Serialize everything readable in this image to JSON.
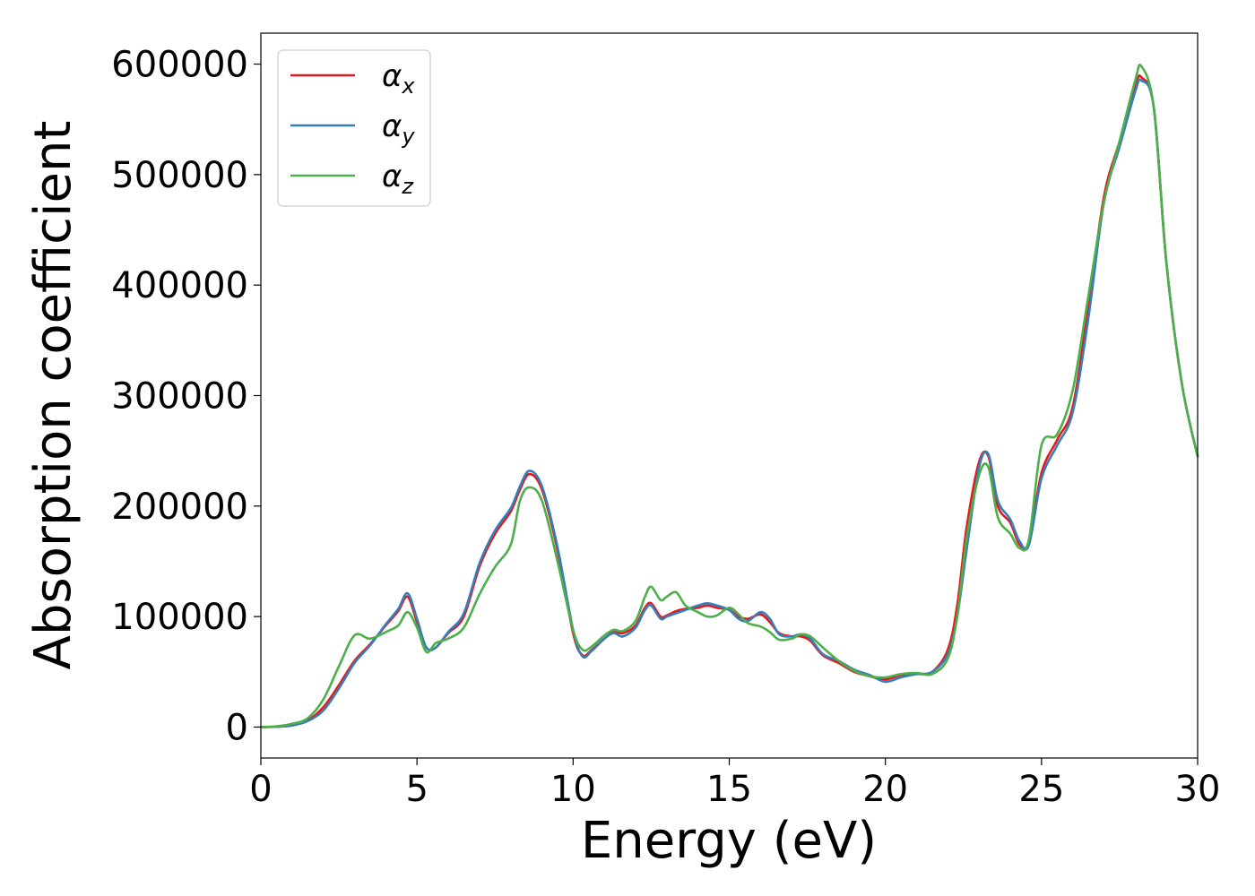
{
  "chart_data": {
    "type": "line",
    "title": "",
    "xlabel": "Energy (eV)",
    "ylabel": "Absorption coefficient",
    "xlim": [
      0,
      30
    ],
    "ylim": [
      -28000,
      628000
    ],
    "xticks": [
      0,
      5,
      10,
      15,
      20,
      25,
      30
    ],
    "yticks": [
      0,
      100000,
      200000,
      300000,
      400000,
      500000,
      600000
    ],
    "grid": false,
    "legend_position": "top-left",
    "series": [
      {
        "name": "α",
        "subscript": "x",
        "color": "#e41a1c",
        "x": [
          0,
          0.5,
          1,
          1.5,
          2,
          2.5,
          3,
          3.5,
          4,
          4.4,
          4.7,
          5,
          5.3,
          5.6,
          6,
          6.5,
          7,
          7.5,
          8,
          8.3,
          8.6,
          9,
          9.5,
          10,
          10.3,
          10.6,
          11,
          11.3,
          11.6,
          12,
          12.3,
          12.5,
          12.8,
          13,
          13.3,
          13.6,
          14,
          14.3,
          14.6,
          15,
          15.3,
          15.6,
          16,
          16.3,
          16.6,
          17,
          17.3,
          17.6,
          18,
          18.5,
          19,
          19.5,
          20,
          20.5,
          21,
          21.5,
          22,
          22.3,
          22.6,
          23,
          23.3,
          23.6,
          24,
          24.3,
          24.6,
          25,
          25.5,
          26,
          26.5,
          27,
          27.5,
          28,
          28.2,
          28.6,
          29,
          29.5,
          30
        ],
        "values": [
          0,
          300,
          1500,
          6000,
          18000,
          38000,
          60000,
          75000,
          92000,
          105000,
          118000,
          95000,
          72000,
          72000,
          85000,
          100000,
          145000,
          175000,
          195000,
          215000,
          229000,
          215000,
          160000,
          85000,
          65000,
          70000,
          80000,
          86000,
          85000,
          92000,
          108000,
          112000,
          100000,
          101000,
          105000,
          107000,
          108000,
          110000,
          108000,
          106000,
          100000,
          98000,
          102000,
          95000,
          85000,
          82000,
          82000,
          78000,
          65000,
          58000,
          50000,
          46000,
          43000,
          47000,
          48000,
          50000,
          70000,
          110000,
          180000,
          240000,
          245000,
          200000,
          185000,
          165000,
          168000,
          230000,
          260000,
          290000,
          380000,
          480000,
          530000,
          580000,
          588000,
          560000,
          420000,
          310000,
          245000
        ]
      },
      {
        "name": "α",
        "subscript": "y",
        "color": "#377eb8",
        "x": [
          0,
          0.5,
          1,
          1.5,
          2,
          2.5,
          3,
          3.5,
          4,
          4.4,
          4.7,
          5,
          5.3,
          5.6,
          6,
          6.5,
          7,
          7.5,
          8,
          8.3,
          8.6,
          9,
          9.5,
          10,
          10.3,
          10.6,
          11,
          11.3,
          11.6,
          12,
          12.3,
          12.5,
          12.8,
          13,
          13.3,
          13.6,
          14,
          14.3,
          14.6,
          15,
          15.3,
          15.6,
          16,
          16.3,
          16.6,
          17,
          17.3,
          17.6,
          18,
          18.5,
          19,
          19.5,
          20,
          20.5,
          21,
          21.5,
          22,
          22.3,
          22.6,
          23,
          23.3,
          23.6,
          24,
          24.3,
          24.6,
          25,
          25.5,
          26,
          26.5,
          27,
          27.5,
          28,
          28.2,
          28.6,
          29,
          29.5,
          30
        ],
        "values": [
          0,
          300,
          1500,
          5500,
          15000,
          35000,
          58000,
          74000,
          93000,
          107000,
          121000,
          98000,
          72000,
          72000,
          86000,
          103000,
          148000,
          178000,
          198000,
          218000,
          232000,
          218000,
          163000,
          88000,
          64000,
          69000,
          80000,
          85000,
          82000,
          90000,
          106000,
          110000,
          98000,
          100000,
          103000,
          106000,
          110000,
          112000,
          110000,
          106000,
          98000,
          96000,
          104000,
          98000,
          84000,
          82000,
          84000,
          80000,
          66000,
          60000,
          52000,
          47000,
          41000,
          45000,
          48000,
          50000,
          66000,
          100000,
          160000,
          235000,
          247000,
          205000,
          188000,
          168000,
          165000,
          225000,
          255000,
          285000,
          370000,
          475000,
          525000,
          575000,
          585000,
          560000,
          420000,
          310000,
          245000
        ]
      },
      {
        "name": "α",
        "subscript": "z",
        "color": "#4daf4a",
        "x": [
          0,
          0.5,
          1,
          1.5,
          2,
          2.5,
          3,
          3.5,
          4,
          4.4,
          4.7,
          5,
          5.3,
          5.6,
          6,
          6.5,
          7,
          7.5,
          8,
          8.3,
          8.6,
          9,
          9.5,
          10,
          10.3,
          10.6,
          11,
          11.3,
          11.6,
          12,
          12.3,
          12.5,
          12.8,
          13,
          13.3,
          13.6,
          14,
          14.3,
          14.6,
          15,
          15.3,
          15.6,
          16,
          16.3,
          16.6,
          17,
          17.3,
          17.6,
          18,
          18.5,
          19,
          19.5,
          20,
          20.5,
          21,
          21.5,
          22,
          22.3,
          22.6,
          23,
          23.3,
          23.6,
          24,
          24.3,
          24.6,
          25,
          25.5,
          26,
          26.5,
          27,
          27.5,
          28,
          28.2,
          28.6,
          29,
          29.5,
          30
        ],
        "values": [
          0,
          600,
          3000,
          8000,
          25000,
          55000,
          83000,
          80000,
          86000,
          92000,
          104000,
          90000,
          68000,
          76000,
          80000,
          90000,
          120000,
          145000,
          165000,
          205000,
          217000,
          205000,
          150000,
          88000,
          70000,
          73000,
          83000,
          88000,
          87000,
          96000,
          118000,
          127000,
          115000,
          118000,
          122000,
          110000,
          104000,
          100000,
          101000,
          108000,
          102000,
          94000,
          91000,
          86000,
          79000,
          80000,
          84000,
          82000,
          72000,
          60000,
          51000,
          46000,
          45000,
          48000,
          49000,
          48000,
          62000,
          100000,
          170000,
          228000,
          235000,
          190000,
          175000,
          162000,
          170000,
          255000,
          265000,
          305000,
          390000,
          475000,
          530000,
          585000,
          598000,
          560000,
          420000,
          310000,
          245000
        ]
      }
    ]
  }
}
